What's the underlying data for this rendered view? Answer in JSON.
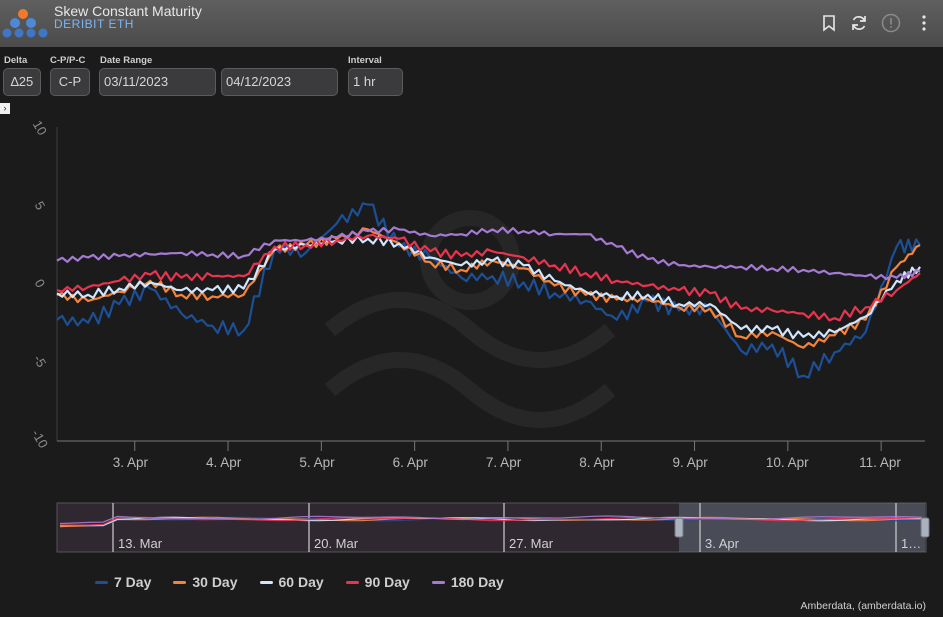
{
  "header": {
    "title": "Skew Constant Maturity",
    "subtitle": "DERIBIT ETH"
  },
  "controls": {
    "delta": {
      "label": "Delta",
      "value": "∆25"
    },
    "cp": {
      "label": "C-P/P-C",
      "value": "C-P"
    },
    "date_range": {
      "label": "Date Range",
      "start": "03/11/2023",
      "end": "04/12/2023"
    },
    "interval": {
      "label": "Interval",
      "value": "1 hr"
    }
  },
  "expander_label": "›",
  "credit": "Amberdata, (amberdata.io)",
  "colors": {
    "7 Day": "#1d4f97",
    "30 Day": "#f5843a",
    "60 Day": "#cfe6ff",
    "90 Day": "#e8344e",
    "180 Day": "#a57ad4"
  },
  "chart_data": {
    "type": "line",
    "title": "",
    "xlabel": "",
    "ylabel": "",
    "ylim": [
      -10,
      10
    ],
    "yticks": [
      "10",
      "5",
      "0",
      "-5",
      "-10"
    ],
    "xlim": [
      "2023-04-02T04:00",
      "2023-04-11T10:00"
    ],
    "xticks": [
      "3. Apr",
      "4. Apr",
      "5. Apr",
      "6. Apr",
      "7. Apr",
      "8. Apr",
      "9. Apr",
      "10. Apr",
      "11. Apr"
    ],
    "x": [
      "2023-04-02T04:00",
      "2023-04-02T12:00",
      "2023-04-02T20:00",
      "2023-04-03T04:00",
      "2023-04-03T12:00",
      "2023-04-03T20:00",
      "2023-04-04T04:00",
      "2023-04-04T12:00",
      "2023-04-04T20:00",
      "2023-04-05T04:00",
      "2023-04-05T12:00",
      "2023-04-05T20:00",
      "2023-04-06T04:00",
      "2023-04-06T12:00",
      "2023-04-06T20:00",
      "2023-04-07T04:00",
      "2023-04-07T12:00",
      "2023-04-07T20:00",
      "2023-04-08T04:00",
      "2023-04-08T12:00",
      "2023-04-08T20:00",
      "2023-04-09T04:00",
      "2023-04-09T12:00",
      "2023-04-09T20:00",
      "2023-04-10T04:00",
      "2023-04-10T12:00",
      "2023-04-10T20:00",
      "2023-04-11T04:00",
      "2023-04-11T10:00"
    ],
    "series": [
      {
        "name": "7 Day",
        "values": [
          -2.2,
          -2.4,
          -1.2,
          -0.2,
          -1.8,
          -2.6,
          -2.9,
          2.4,
          2.1,
          4.0,
          5.2,
          2.5,
          1.8,
          0.5,
          0.6,
          0.2,
          -0.5,
          -1.0,
          -2.2,
          -1.0,
          -1.6,
          -1.5,
          -4.2,
          -3.8,
          -5.8,
          -4.3,
          -3.0,
          2.5,
          2.6
        ]
      },
      {
        "name": "30 Day",
        "values": [
          -0.6,
          -1.0,
          -0.4,
          0.3,
          -0.6,
          -0.7,
          -0.6,
          2.3,
          2.6,
          3.0,
          3.6,
          2.7,
          1.5,
          1.0,
          1.6,
          1.1,
          0.0,
          -0.6,
          -0.9,
          -0.9,
          -1.4,
          -1.5,
          -3.3,
          -3.0,
          -4.0,
          -3.2,
          -2.2,
          1.2,
          2.6
        ]
      },
      {
        "name": "60 Day",
        "values": [
          -0.5,
          -0.6,
          -0.2,
          0.2,
          -0.3,
          -0.3,
          -0.2,
          2.3,
          2.6,
          2.9,
          3.0,
          2.7,
          1.8,
          1.3,
          1.6,
          1.3,
          0.3,
          -0.4,
          -0.7,
          -0.6,
          -1.2,
          -1.2,
          -2.8,
          -2.8,
          -3.3,
          -3.0,
          -2.0,
          0.3,
          1.2
        ]
      },
      {
        "name": "90 Day",
        "values": [
          -0.3,
          -0.1,
          0.3,
          0.7,
          0.5,
          0.6,
          0.6,
          2.5,
          2.6,
          2.9,
          3.2,
          3.0,
          2.2,
          1.9,
          2.2,
          1.8,
          1.3,
          0.8,
          0.3,
          0.0,
          -0.3,
          -0.5,
          -1.5,
          -1.6,
          -1.8,
          -2.1,
          -1.4,
          -0.3,
          0.8
        ]
      },
      {
        "name": "180 Day",
        "values": [
          1.6,
          1.8,
          1.9,
          2.0,
          2.1,
          2.0,
          1.9,
          2.9,
          2.9,
          3.1,
          3.5,
          3.6,
          3.2,
          3.3,
          3.6,
          3.5,
          3.3,
          3.3,
          2.5,
          1.7,
          1.3,
          1.2,
          1.2,
          1.1,
          1.0,
          0.8,
          0.6,
          0.5,
          0.9
        ]
      }
    ],
    "navigator": {
      "labels": [
        "13. Mar",
        "20. Mar",
        "27. Mar",
        "3. Apr",
        "1…"
      ]
    },
    "legend": [
      "7 Day",
      "30 Day",
      "60 Day",
      "90 Day",
      "180 Day"
    ],
    "legend_position": "bottom",
    "grid": false
  }
}
